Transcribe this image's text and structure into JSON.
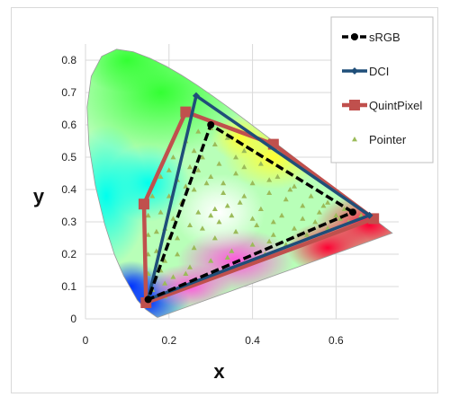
{
  "chart_data": {
    "type": "scatter",
    "xlabel": "x",
    "ylabel": "y",
    "xlim": [
      0,
      0.75
    ],
    "ylim": [
      0,
      0.85
    ],
    "xticks": [
      "0",
      "0.2",
      "0.4",
      "0.6"
    ],
    "yticks": [
      "0",
      "0.1",
      "0.2",
      "0.3",
      "0.4",
      "0.5",
      "0.6",
      "0.7",
      "0.8"
    ],
    "grid": "on",
    "legend_position": "top-right",
    "background": "CIE 1931 chromaticity horseshoe (spectral locus filled with colors)",
    "series": [
      {
        "name": "sRGB",
        "color": "#000000",
        "marker": "circle",
        "line": "dashed",
        "points": [
          [
            0.64,
            0.33
          ],
          [
            0.3,
            0.6
          ],
          [
            0.15,
            0.06
          ],
          [
            0.64,
            0.33
          ]
        ]
      },
      {
        "name": "DCI",
        "color": "#1f4e79",
        "marker": "diamond",
        "line": "solid",
        "points": [
          [
            0.68,
            0.32
          ],
          [
            0.265,
            0.69
          ],
          [
            0.15,
            0.06
          ],
          [
            0.68,
            0.32
          ]
        ]
      },
      {
        "name": "QuintPixel",
        "color": "#c0504d",
        "marker": "square",
        "line": "solid",
        "points": [
          [
            0.69,
            0.31
          ],
          [
            0.45,
            0.54
          ],
          [
            0.24,
            0.64
          ],
          [
            0.14,
            0.355
          ],
          [
            0.145,
            0.05
          ],
          [
            0.69,
            0.31
          ]
        ]
      },
      {
        "name": "Pointer",
        "color": "#9bbb59",
        "marker": "triangle",
        "line": "none",
        "points": [
          [
            0.66,
            0.32
          ],
          [
            0.62,
            0.34
          ],
          [
            0.58,
            0.36
          ],
          [
            0.54,
            0.38
          ],
          [
            0.5,
            0.41
          ],
          [
            0.46,
            0.44
          ],
          [
            0.42,
            0.48
          ],
          [
            0.38,
            0.52
          ],
          [
            0.34,
            0.56
          ],
          [
            0.3,
            0.59
          ],
          [
            0.27,
            0.58
          ],
          [
            0.24,
            0.55
          ],
          [
            0.21,
            0.5
          ],
          [
            0.18,
            0.44
          ],
          [
            0.16,
            0.38
          ],
          [
            0.15,
            0.32
          ],
          [
            0.15,
            0.26
          ],
          [
            0.15,
            0.2
          ],
          [
            0.15,
            0.14
          ],
          [
            0.16,
            0.09
          ],
          [
            0.19,
            0.07
          ],
          [
            0.23,
            0.1
          ],
          [
            0.28,
            0.12
          ],
          [
            0.33,
            0.15
          ],
          [
            0.38,
            0.17
          ],
          [
            0.43,
            0.2
          ],
          [
            0.48,
            0.23
          ],
          [
            0.53,
            0.26
          ],
          [
            0.58,
            0.28
          ],
          [
            0.63,
            0.3
          ],
          [
            0.6,
            0.32
          ],
          [
            0.56,
            0.33
          ],
          [
            0.52,
            0.35
          ],
          [
            0.48,
            0.37
          ],
          [
            0.44,
            0.39
          ],
          [
            0.4,
            0.42
          ],
          [
            0.36,
            0.45
          ],
          [
            0.32,
            0.48
          ],
          [
            0.28,
            0.5
          ],
          [
            0.25,
            0.47
          ],
          [
            0.22,
            0.43
          ],
          [
            0.2,
            0.38
          ],
          [
            0.18,
            0.33
          ],
          [
            0.17,
            0.27
          ],
          [
            0.17,
            0.21
          ],
          [
            0.18,
            0.15
          ],
          [
            0.21,
            0.13
          ],
          [
            0.25,
            0.16
          ],
          [
            0.3,
            0.18
          ],
          [
            0.35,
            0.21
          ],
          [
            0.4,
            0.23
          ],
          [
            0.45,
            0.26
          ],
          [
            0.5,
            0.28
          ],
          [
            0.55,
            0.3
          ],
          [
            0.52,
            0.31
          ],
          [
            0.47,
            0.32
          ],
          [
            0.42,
            0.34
          ],
          [
            0.37,
            0.36
          ],
          [
            0.33,
            0.39
          ],
          [
            0.29,
            0.42
          ],
          [
            0.26,
            0.4
          ],
          [
            0.23,
            0.36
          ],
          [
            0.21,
            0.31
          ],
          [
            0.2,
            0.25
          ],
          [
            0.22,
            0.2
          ],
          [
            0.26,
            0.22
          ],
          [
            0.31,
            0.25
          ],
          [
            0.36,
            0.27
          ],
          [
            0.41,
            0.29
          ],
          [
            0.45,
            0.3
          ],
          [
            0.4,
            0.31
          ],
          [
            0.35,
            0.32
          ],
          [
            0.31,
            0.34
          ],
          [
            0.27,
            0.33
          ],
          [
            0.25,
            0.29
          ],
          [
            0.28,
            0.28
          ],
          [
            0.32,
            0.3
          ],
          [
            0.3,
            0.32
          ],
          [
            0.34,
            0.35
          ],
          [
            0.38,
            0.38
          ],
          [
            0.3,
            0.44
          ],
          [
            0.27,
            0.46
          ],
          [
            0.24,
            0.41
          ],
          [
            0.26,
            0.52
          ],
          [
            0.31,
            0.54
          ],
          [
            0.36,
            0.5
          ],
          [
            0.44,
            0.43
          ],
          [
            0.49,
            0.4
          ],
          [
            0.57,
            0.35
          ],
          [
            0.61,
            0.31
          ],
          [
            0.44,
            0.24
          ],
          [
            0.34,
            0.19
          ],
          [
            0.24,
            0.14
          ],
          [
            0.19,
            0.11
          ],
          [
            0.19,
            0.18
          ],
          [
            0.19,
            0.28
          ],
          [
            0.22,
            0.25
          ],
          [
            0.33,
            0.42
          ],
          [
            0.38,
            0.47
          ],
          [
            0.2,
            0.46
          ]
        ]
      }
    ]
  }
}
